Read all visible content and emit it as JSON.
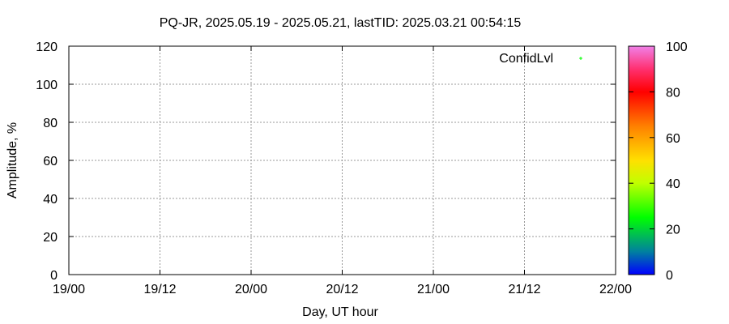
{
  "chart_data": {
    "type": "scatter",
    "title": "PQ-JR, 2025.05.19 - 2025.05.21, lastTID: 2025.03.21 00:54:15",
    "xlabel": "Day, UT hour",
    "ylabel": "Amplitude, %",
    "xticks": [
      "19/00",
      "19/12",
      "20/00",
      "20/12",
      "21/00",
      "21/12",
      "22/00"
    ],
    "ylim": [
      0,
      120
    ],
    "yticks": [
      0,
      20,
      40,
      60,
      80,
      100,
      120
    ],
    "grid": true,
    "legend": {
      "entries": [
        "ConfidLvl"
      ],
      "placement": "top-right",
      "marker_color": "#00ff00"
    },
    "series": [
      {
        "name": "ConfidLvl",
        "points": []
      }
    ],
    "colorbar": {
      "range": [
        0,
        100
      ],
      "ticks": [
        0,
        20,
        40,
        60,
        80,
        100
      ],
      "stops": [
        {
          "value": 0,
          "color": "#0000ff"
        },
        {
          "value": 10,
          "color": "#0080a0"
        },
        {
          "value": 25,
          "color": "#00ff00"
        },
        {
          "value": 40,
          "color": "#c0ff00"
        },
        {
          "value": 50,
          "color": "#ffe000"
        },
        {
          "value": 65,
          "color": "#ff8000"
        },
        {
          "value": 80,
          "color": "#ff0000"
        },
        {
          "value": 90,
          "color": "#ff3070"
        },
        {
          "value": 100,
          "color": "#f080e8"
        }
      ]
    }
  }
}
